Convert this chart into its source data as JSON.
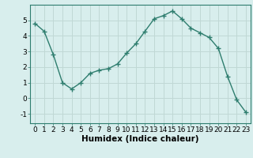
{
  "x": [
    0,
    1,
    2,
    3,
    4,
    5,
    6,
    7,
    8,
    9,
    10,
    11,
    12,
    13,
    14,
    15,
    16,
    17,
    18,
    19,
    20,
    21,
    22,
    23
  ],
  "y": [
    4.8,
    4.3,
    2.8,
    1.0,
    0.6,
    1.0,
    1.6,
    1.8,
    1.9,
    2.2,
    2.9,
    3.5,
    4.3,
    5.1,
    5.3,
    5.6,
    5.1,
    4.5,
    4.2,
    3.9,
    3.2,
    1.4,
    -0.1,
    -0.9
  ],
  "line_color": "#2e7d6e",
  "marker": "+",
  "marker_size": 4,
  "bg_color": "#d8eeed",
  "grid_color": "#c0d8d5",
  "xlabel": "Humidex (Indice chaleur)",
  "xlim": [
    -0.5,
    23.5
  ],
  "ylim": [
    -1.6,
    6.0
  ],
  "yticks": [
    -1,
    0,
    1,
    2,
    3,
    4,
    5
  ],
  "xticks": [
    0,
    1,
    2,
    3,
    4,
    5,
    6,
    7,
    8,
    9,
    10,
    11,
    12,
    13,
    14,
    15,
    16,
    17,
    18,
    19,
    20,
    21,
    22,
    23
  ],
  "tick_fontsize": 6.5,
  "xlabel_fontsize": 7.5
}
